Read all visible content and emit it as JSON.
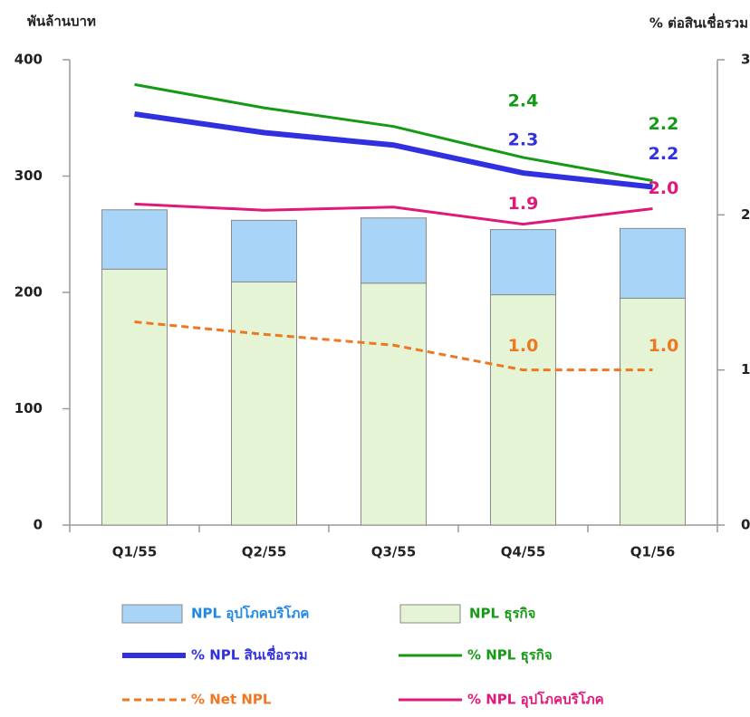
{
  "chart_data": {
    "type": "bar",
    "y_label": "พันล้านบาท",
    "y2_label": "% ต่อสินเชื่อรวม",
    "categories": [
      "Q1/55",
      "Q2/55",
      "Q3/55",
      "Q4/55",
      "Q1/56"
    ],
    "ylim": [
      0,
      400
    ],
    "yticks": [
      0,
      100,
      200,
      300,
      400
    ],
    "y2lim": [
      0,
      3
    ],
    "y2ticks": [
      0,
      1,
      2,
      3
    ],
    "series": [
      {
        "name": "NPL ธุรกิจ",
        "type": "bar",
        "color": "#e4f4d4",
        "values": [
          220,
          209,
          208,
          198,
          195
        ]
      },
      {
        "name": "NPL อุปโภคบริโภค",
        "type": "bar",
        "color": "#a8d4f8",
        "values": [
          51,
          53,
          56,
          56,
          60
        ]
      },
      {
        "name": "% NPL สินเชื่อรวม",
        "type": "line",
        "axis": "y2",
        "color": "#3030e0",
        "width": 6,
        "values": [
          2.65,
          2.53,
          2.45,
          2.27,
          2.18
        ],
        "value_labels": [
          null,
          null,
          null,
          "2.3",
          "2.2"
        ]
      },
      {
        "name": "% NPL ธุรกิจ",
        "type": "line",
        "axis": "y2",
        "color": "#159a15",
        "width": 3,
        "values": [
          2.84,
          2.69,
          2.57,
          2.37,
          2.22
        ],
        "value_labels": [
          null,
          null,
          null,
          "2.4",
          "2.2"
        ]
      },
      {
        "name": "% NPL อุปโภคบริโภค",
        "type": "line",
        "axis": "y2",
        "color": "#e0187a",
        "width": 3,
        "values": [
          2.07,
          2.03,
          2.05,
          1.94,
          2.04
        ],
        "value_labels": [
          null,
          null,
          null,
          "1.9",
          "2.0"
        ]
      },
      {
        "name": "% Net NPL",
        "type": "line",
        "axis": "y2",
        "color": "#ef7722",
        "width": 3,
        "dashed": true,
        "values": [
          1.31,
          1.23,
          1.16,
          1.0,
          1.0
        ],
        "value_labels": [
          null,
          null,
          null,
          "1.0",
          "1.0"
        ]
      }
    ]
  }
}
